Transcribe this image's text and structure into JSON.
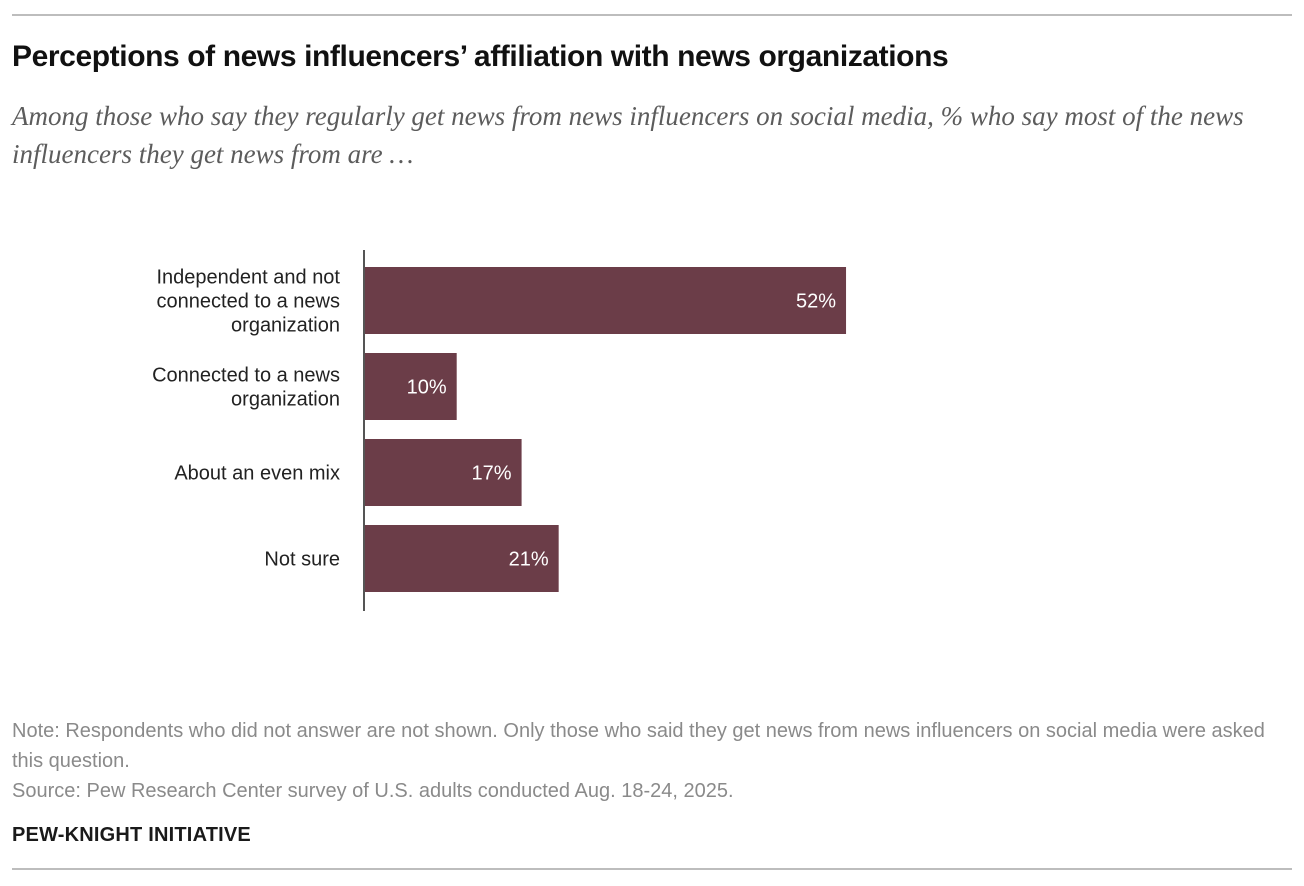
{
  "title": "Perceptions of news influencers’ affiliation with news organizations",
  "subtitle": "Among those who say they regularly get news from news influencers on social media, % who say most of the news influencers they get news from are …",
  "note": "Note: Respondents who did not answer are not shown. Only those who said they get news from news influencers on social media were asked this question.",
  "source": "Source: Pew Research Center survey of U.S. adults conducted Aug. 18-24, 2025.",
  "brand": "PEW-KNIGHT INITIATIVE",
  "colors": {
    "bar": "#6b3d48",
    "axis": "#555555",
    "bar_label": "#ffffff",
    "category_label": "#222222"
  },
  "chart_data": {
    "type": "bar",
    "orientation": "horizontal",
    "categories": [
      [
        "Independent and not",
        "connected to a news",
        "organization"
      ],
      [
        "Connected to a news",
        "organization"
      ],
      [
        "About an even mix"
      ],
      [
        "Not sure"
      ]
    ],
    "values": [
      52,
      10,
      17,
      21
    ],
    "value_labels": [
      "52%",
      "10%",
      "17%",
      "21%"
    ],
    "unit": "%",
    "xlim": [
      0,
      100
    ],
    "grid": false,
    "legend": "none"
  }
}
